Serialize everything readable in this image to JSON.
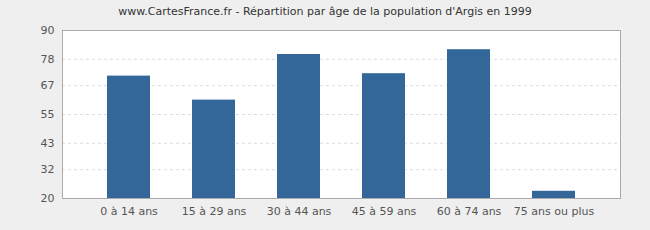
{
  "chart_data": {
    "type": "bar",
    "title": "www.CartesFrance.fr - Répartition par âge de la population d'Argis en 1999",
    "categories": [
      "0 à 14 ans",
      "15 à 29 ans",
      "30 à 44 ans",
      "45 à 59 ans",
      "60 à 74 ans",
      "75 ans ou plus"
    ],
    "values": [
      71,
      61,
      80,
      72,
      82,
      23
    ],
    "color": "#336699",
    "ylim": [
      20,
      90
    ],
    "yticks": [
      20,
      32,
      43,
      55,
      67,
      78,
      90
    ],
    "grid": true
  }
}
